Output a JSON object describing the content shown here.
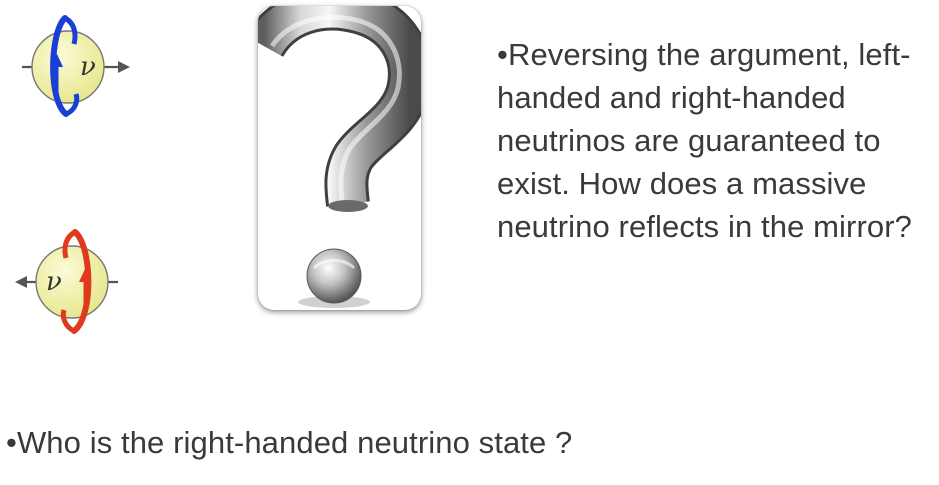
{
  "slide": {
    "bullet_marker": "•",
    "paragraph_reversing": "Reversing the argument, left-handed and right-handed neutrinos are guaranteed to exist. How does a massive neutrino reflects in the mirror?",
    "paragraph_who": "Who is the right-handed neutrino state ?"
  },
  "diagrams": {
    "left_handed": {
      "symbol": "ν",
      "spin_arrow_color": "#1a3fd6"
    },
    "right_handed": {
      "symbol": "ν",
      "spin_arrow_color": "#e03a1e"
    },
    "sphere_color": "#eeee9a",
    "momentum_arrow_color": "#555555"
  },
  "question_mark": {
    "icon": "question-mark-icon"
  }
}
